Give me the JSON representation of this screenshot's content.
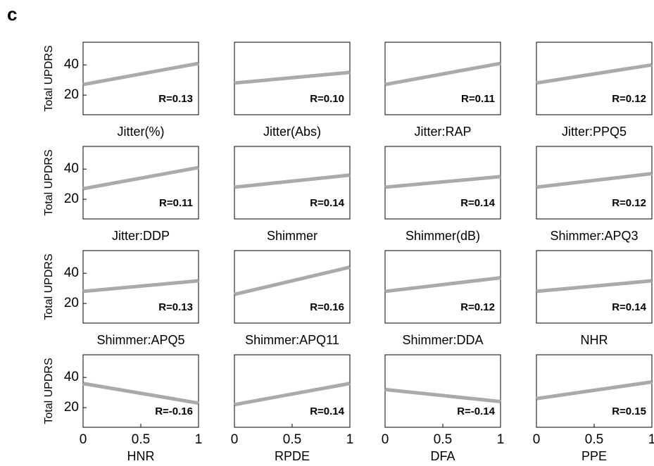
{
  "panel_label": "c",
  "chart_data": [
    {
      "type": "fit",
      "x_label": "Jitter(%)",
      "y_label": "Total UPDRS",
      "ylim": [
        7,
        55
      ],
      "yticks": [
        20,
        40
      ],
      "xlim": [
        0,
        1
      ],
      "fit": {
        "x": [
          0,
          1
        ],
        "y": [
          27,
          41
        ]
      },
      "annotation": "R=0.13"
    },
    {
      "type": "fit",
      "x_label": "Jitter(Abs)",
      "ylim": [
        7,
        55
      ],
      "xlim": [
        0,
        1
      ],
      "fit": {
        "x": [
          0,
          1
        ],
        "y": [
          28,
          35
        ]
      },
      "annotation": "R=0.10"
    },
    {
      "type": "fit",
      "x_label": "Jitter:RAP",
      "ylim": [
        7,
        55
      ],
      "xlim": [
        0,
        1
      ],
      "fit": {
        "x": [
          0,
          1
        ],
        "y": [
          27,
          41
        ]
      },
      "annotation": "R=0.11"
    },
    {
      "type": "fit",
      "x_label": "Jitter:PPQ5",
      "ylim": [
        7,
        55
      ],
      "xlim": [
        0,
        1
      ],
      "fit": {
        "x": [
          0,
          1
        ],
        "y": [
          28,
          40
        ]
      },
      "annotation": "R=0.12"
    },
    {
      "type": "fit",
      "x_label": "Jitter:DDP",
      "y_label": "Total UPDRS",
      "ylim": [
        7,
        55
      ],
      "yticks": [
        20,
        40
      ],
      "xlim": [
        0,
        1
      ],
      "fit": {
        "x": [
          0,
          1
        ],
        "y": [
          27,
          41
        ]
      },
      "annotation": "R=0.11"
    },
    {
      "type": "fit",
      "x_label": "Shimmer",
      "ylim": [
        7,
        55
      ],
      "xlim": [
        0,
        1
      ],
      "fit": {
        "x": [
          0,
          1
        ],
        "y": [
          28,
          36
        ]
      },
      "annotation": "R=0.14"
    },
    {
      "type": "fit",
      "x_label": "Shimmer(dB)",
      "ylim": [
        7,
        55
      ],
      "xlim": [
        0,
        1
      ],
      "fit": {
        "x": [
          0,
          1
        ],
        "y": [
          28,
          35
        ]
      },
      "annotation": "R=0.14"
    },
    {
      "type": "fit",
      "x_label": "Shimmer:APQ3",
      "ylim": [
        7,
        55
      ],
      "xlim": [
        0,
        1
      ],
      "fit": {
        "x": [
          0,
          1
        ],
        "y": [
          28,
          37
        ]
      },
      "annotation": "R=0.12"
    },
    {
      "type": "fit",
      "x_label": "Shimmer:APQ5",
      "y_label": "Total UPDRS",
      "ylim": [
        7,
        55
      ],
      "yticks": [
        20,
        40
      ],
      "xlim": [
        0,
        1
      ],
      "fit": {
        "x": [
          0,
          1
        ],
        "y": [
          28,
          35
        ]
      },
      "annotation": "R=0.13"
    },
    {
      "type": "fit",
      "x_label": "Shimmer:APQ11",
      "ylim": [
        7,
        55
      ],
      "xlim": [
        0,
        1
      ],
      "fit": {
        "x": [
          0,
          1
        ],
        "y": [
          26,
          44
        ]
      },
      "annotation": "R=0.16"
    },
    {
      "type": "fit",
      "x_label": "Shimmer:DDA",
      "ylim": [
        7,
        55
      ],
      "xlim": [
        0,
        1
      ],
      "fit": {
        "x": [
          0,
          1
        ],
        "y": [
          28,
          37
        ]
      },
      "annotation": "R=0.12"
    },
    {
      "type": "fit",
      "x_label": "NHR",
      "ylim": [
        7,
        55
      ],
      "xlim": [
        0,
        1
      ],
      "fit": {
        "x": [
          0,
          1
        ],
        "y": [
          28,
          35
        ]
      },
      "annotation": "R=0.14"
    },
    {
      "type": "fit",
      "x_label": "HNR",
      "y_label": "Total UPDRS",
      "ylim": [
        7,
        55
      ],
      "yticks": [
        20,
        40
      ],
      "xlim": [
        0,
        1
      ],
      "xticks": [
        0,
        0.5,
        1
      ],
      "fit": {
        "x": [
          0,
          1
        ],
        "y": [
          36,
          23
        ]
      },
      "annotation": "R=-0.16"
    },
    {
      "type": "fit",
      "x_label": "RPDE",
      "ylim": [
        7,
        55
      ],
      "xlim": [
        0,
        1
      ],
      "xticks": [
        0,
        0.5,
        1
      ],
      "fit": {
        "x": [
          0,
          1
        ],
        "y": [
          22,
          36
        ]
      },
      "annotation": "R=0.14"
    },
    {
      "type": "fit",
      "x_label": "DFA",
      "ylim": [
        7,
        55
      ],
      "xlim": [
        0,
        1
      ],
      "xticks": [
        0,
        0.5,
        1
      ],
      "fit": {
        "x": [
          0,
          1
        ],
        "y": [
          32,
          24
        ]
      },
      "annotation": "R=-0.14"
    },
    {
      "type": "fit",
      "x_label": "PPE",
      "ylim": [
        7,
        55
      ],
      "xlim": [
        0,
        1
      ],
      "xticks": [
        0,
        0.5,
        1
      ],
      "fit": {
        "x": [
          0,
          1
        ],
        "y": [
          26,
          37
        ]
      },
      "annotation": "R=0.15"
    }
  ]
}
